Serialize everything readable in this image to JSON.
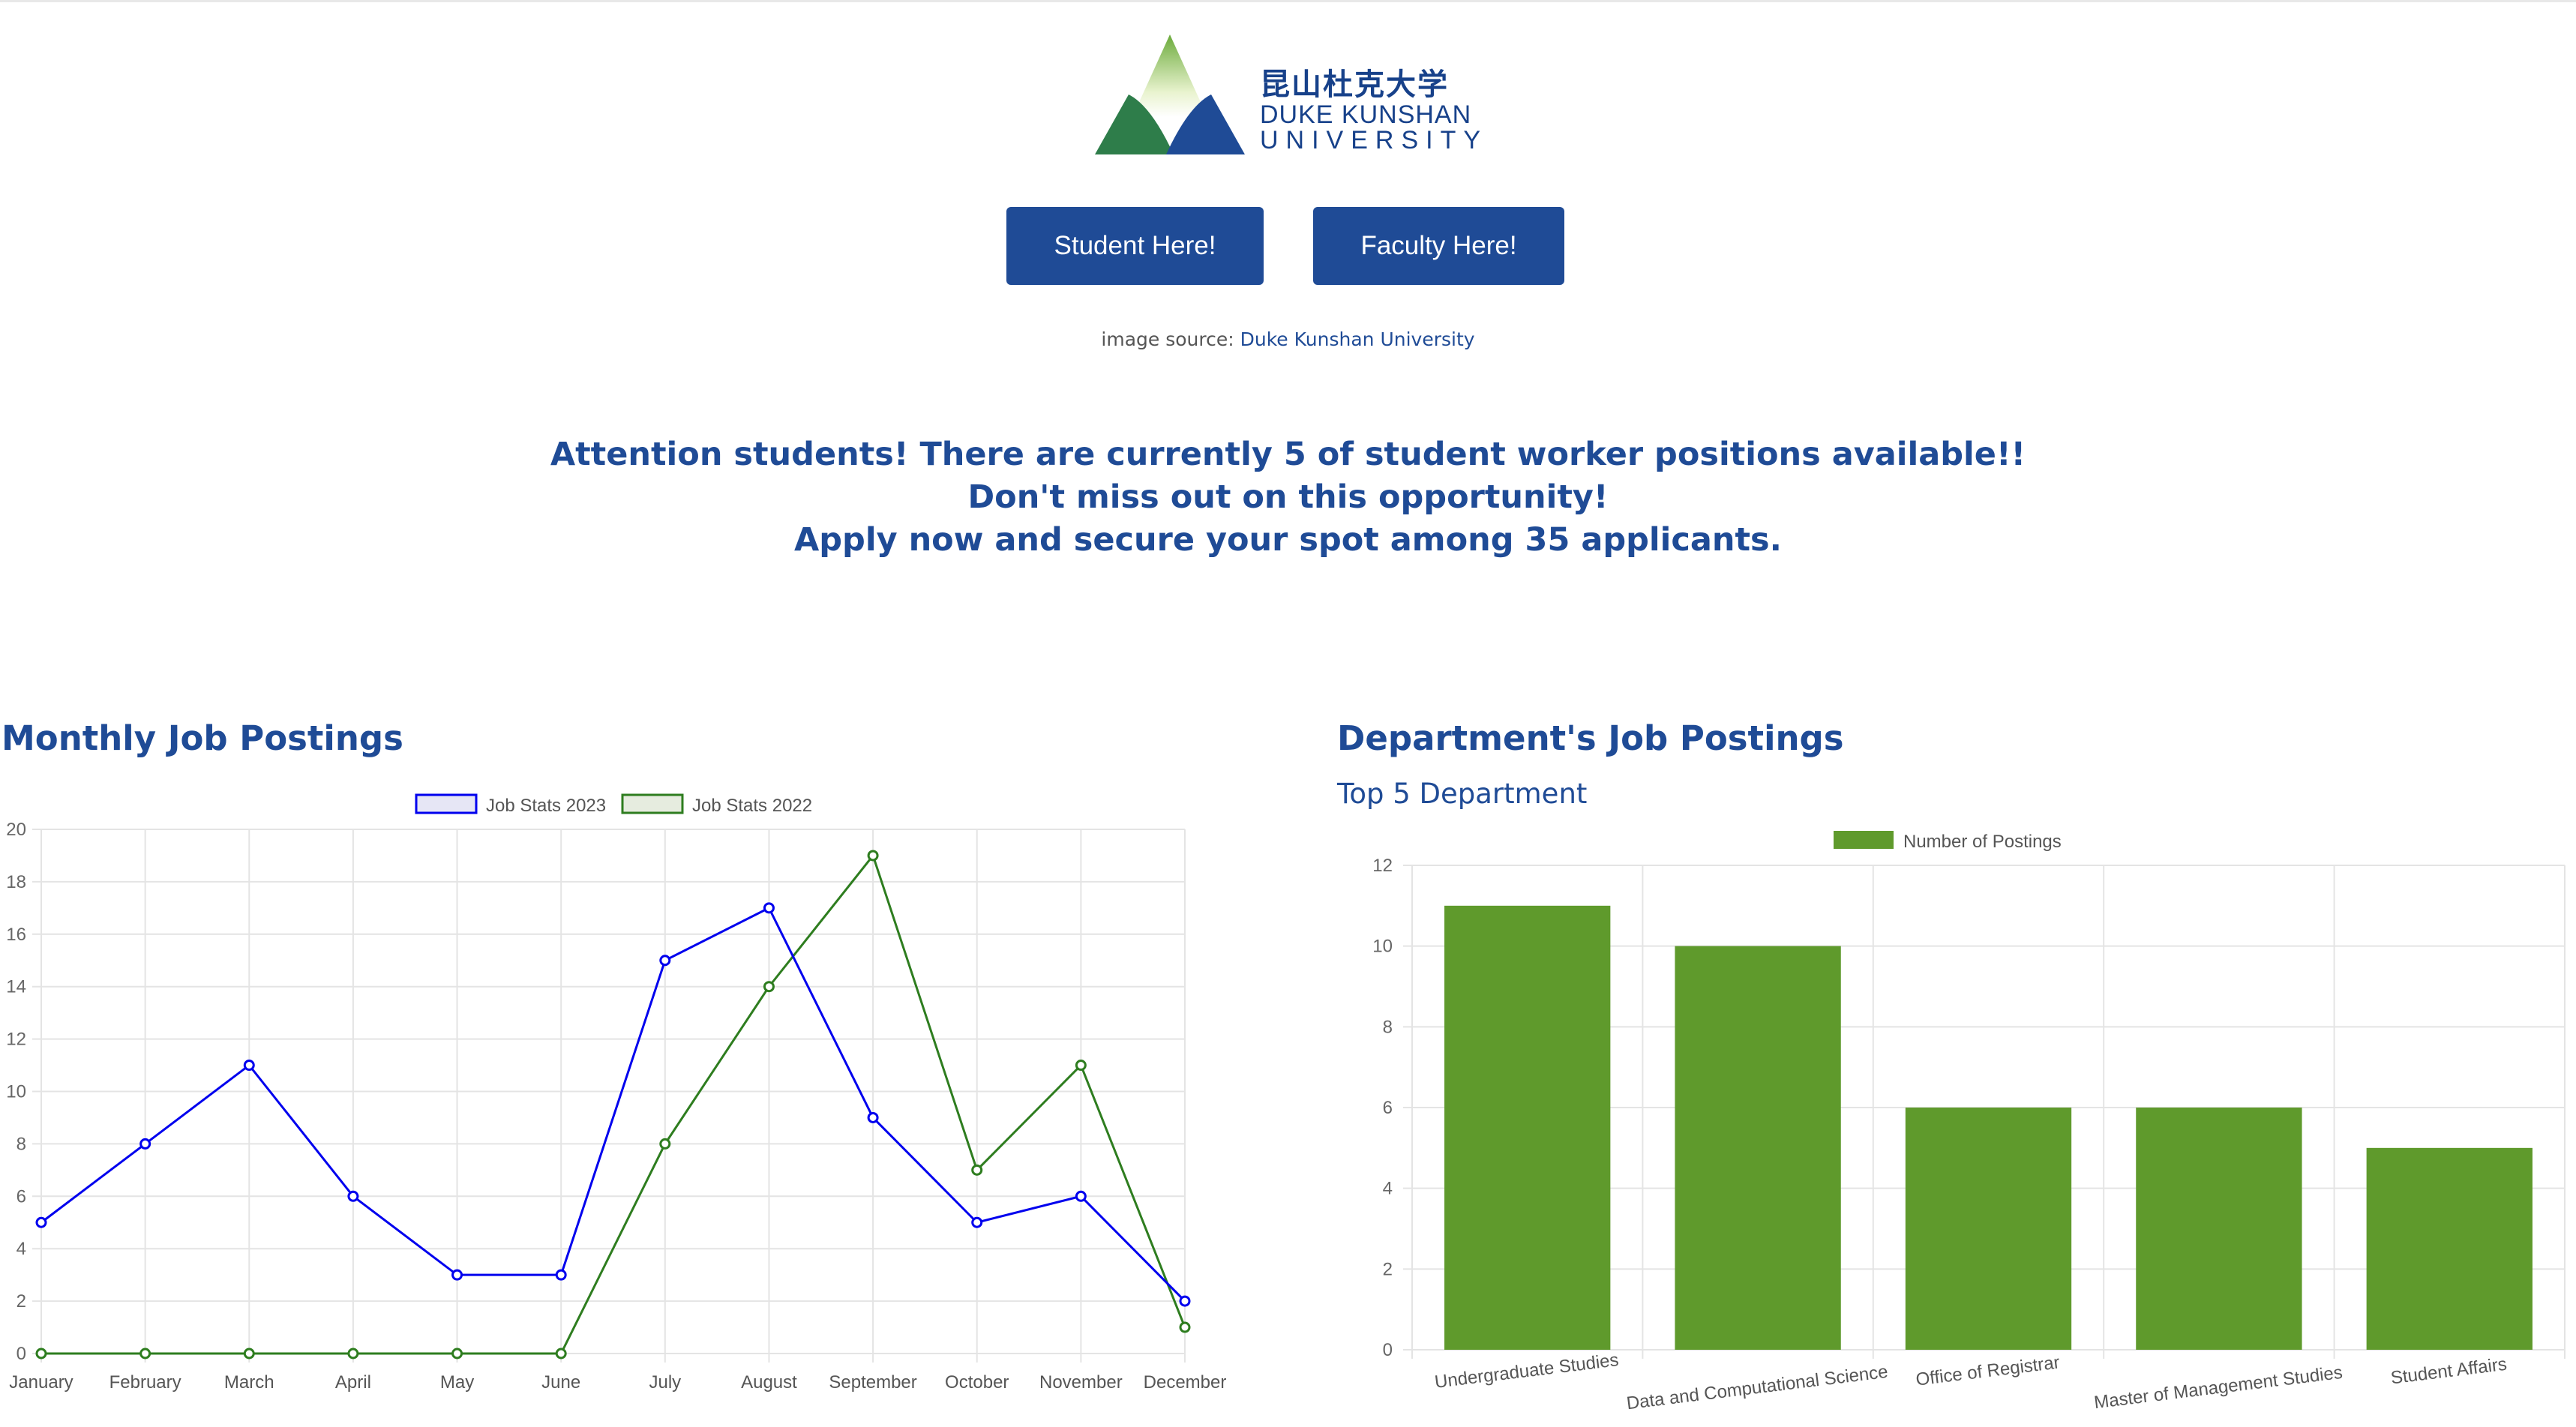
{
  "logo": {
    "chinese": "昆山杜克大学",
    "line1": "DUKE KUNSHAN",
    "line2": "UNIVERSITY"
  },
  "buttons": {
    "student": "Student Here!",
    "faculty": "Faculty Here!"
  },
  "image_source": {
    "prefix": "image source:",
    "link": "Duke Kunshan University"
  },
  "announcement": {
    "line1": "Attention students! There are currently 5 of student worker positions available!!",
    "line2": "Don't miss out on this opportunity!",
    "line3": "Apply now and secure your spot among 35 applicants."
  },
  "sections": {
    "monthly_title": "Monthly Job Postings",
    "dept_title": "Department's Job Postings",
    "dept_subtitle": "Top 5 Department"
  },
  "colors": {
    "brand": "#1f4b96",
    "series_2023": "#0000ee",
    "series_2022": "#2e7d1f",
    "bar": "#5f9a2c"
  },
  "chart_data": [
    {
      "type": "line",
      "categories": [
        "January",
        "February",
        "March",
        "April",
        "May",
        "June",
        "July",
        "August",
        "September",
        "October",
        "November",
        "December"
      ],
      "series": [
        {
          "name": "Job Stats 2023",
          "color": "#0000ee",
          "values": [
            5,
            8,
            11,
            6,
            3,
            3,
            15,
            17,
            9,
            5,
            6,
            2
          ]
        },
        {
          "name": "Job Stats 2022",
          "color": "#2e7d1f",
          "values": [
            0,
            0,
            0,
            0,
            0,
            0,
            8,
            14,
            19,
            7,
            11,
            1
          ]
        }
      ],
      "ylim": [
        0,
        20
      ],
      "yticks": [
        0,
        2,
        4,
        6,
        8,
        10,
        12,
        14,
        16,
        18,
        20
      ],
      "grid": true,
      "legend": "top-center"
    },
    {
      "type": "bar",
      "categories": [
        "Undergraduate Studies",
        "Data and Computational Science",
        "Office of Registrar",
        "Master of Management Studies",
        "Student Affairs"
      ],
      "series": [
        {
          "name": "Number of Postings",
          "color": "#5f9a2c",
          "values": [
            11,
            10,
            6,
            6,
            5
          ]
        }
      ],
      "ylim": [
        0,
        12
      ],
      "yticks": [
        0,
        2,
        4,
        6,
        8,
        10,
        12
      ],
      "grid": true,
      "legend": "top-center"
    }
  ]
}
